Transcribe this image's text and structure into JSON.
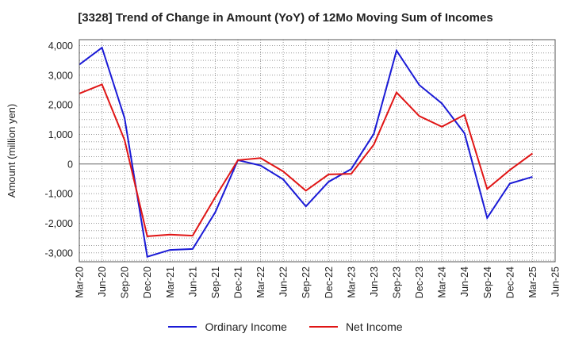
{
  "chart_data": {
    "type": "line",
    "title": "[3328]  Trend of Change in Amount (YoY) of 12Mo Moving Sum of Incomes",
    "xlabel": "",
    "ylabel": "Amount (million yen)",
    "ylim": [
      -3300,
      4200
    ],
    "yticks": [
      -3000,
      -2000,
      -1000,
      0,
      1000,
      2000,
      3000,
      4000
    ],
    "ytick_labels": [
      "-3,000",
      "-2,000",
      "-1,000",
      "0",
      "1,000",
      "2,000",
      "3,000",
      "4,000"
    ],
    "x": [
      "Mar-20",
      "Jun-20",
      "Sep-20",
      "Dec-20",
      "Mar-21",
      "Jun-21",
      "Sep-21",
      "Dec-21",
      "Mar-22",
      "Jun-22",
      "Sep-22",
      "Dec-22",
      "Mar-23",
      "Jun-23",
      "Sep-23",
      "Dec-23",
      "Mar-24",
      "Jun-24",
      "Sep-24",
      "Dec-24",
      "Mar-25",
      "Jun-25"
    ],
    "grid": true,
    "legend_position": "bottom",
    "series": [
      {
        "name": "Ordinary Income",
        "color": "#1a1ad6",
        "values": [
          3360,
          3930,
          1550,
          -3130,
          -2900,
          -2870,
          -1630,
          130,
          -50,
          -520,
          -1430,
          -600,
          -170,
          1020,
          3830,
          2670,
          2050,
          1040,
          -1820,
          -660,
          -430,
          null
        ]
      },
      {
        "name": "Net Income",
        "color": "#e01515",
        "values": [
          2380,
          2690,
          810,
          -2440,
          -2380,
          -2420,
          -1120,
          130,
          200,
          -250,
          -900,
          -350,
          -330,
          660,
          2420,
          1620,
          1260,
          1660,
          -840,
          -200,
          360,
          null
        ]
      }
    ]
  }
}
